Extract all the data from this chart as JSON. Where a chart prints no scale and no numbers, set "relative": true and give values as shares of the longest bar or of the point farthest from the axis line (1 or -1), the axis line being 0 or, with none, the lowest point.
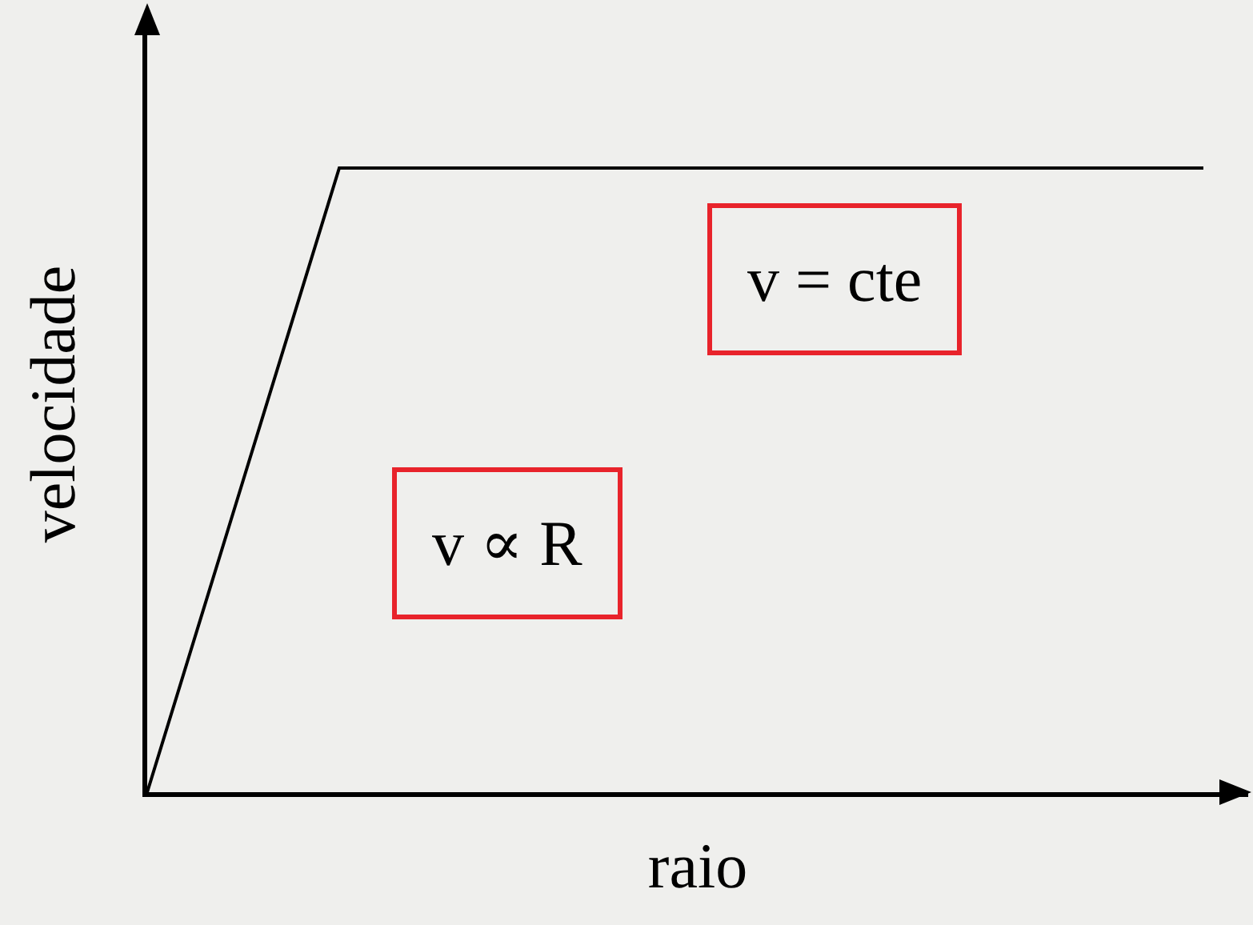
{
  "chart_data": {
    "type": "line",
    "relative": true,
    "xlabel": "raio",
    "ylabel": "velocidade",
    "categories": [
      null,
      null,
      null,
      null,
      null,
      null,
      null,
      null,
      null,
      null,
      null,
      null
    ],
    "series": [
      {
        "color": "#000000",
        "values": [
          0,
          0.5,
          1,
          1,
          1,
          1,
          1,
          1,
          1,
          1,
          1,
          1
        ]
      }
    ],
    "annotations": [
      "v ∝ R",
      "v = cte"
    ],
    "grid": false,
    "marker": "none",
    "line_style": "solid"
  }
}
